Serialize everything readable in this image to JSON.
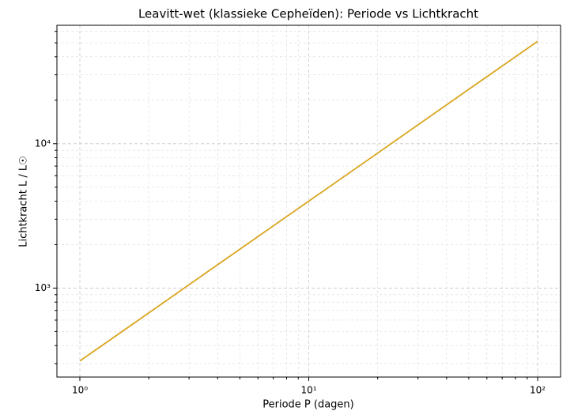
{
  "chart_data": {
    "type": "line",
    "title": "Leavitt-wet (klassieke Cepheïden): Periode vs Lichtkracht",
    "x_label": "Periode P (dagen)",
    "y_label": "Lichtkracht L / L☉",
    "x": [
      1,
      2,
      5,
      10,
      20,
      50,
      100
    ],
    "series": [
      {
        "color": "#daa520",
        "values": [
          313,
          673,
          1860,
          4000,
          8610,
          23800,
          51200
        ]
      }
    ],
    "x_log": true,
    "y_log": true,
    "grid": true,
    "xlim": [
      0.794,
      125.9
    ],
    "ylim": [
      242,
      66100
    ],
    "xticks": [
      {
        "value": 1,
        "label": "10⁰"
      },
      {
        "value": 10,
        "label": "10¹"
      },
      {
        "value": 100,
        "label": "10²"
      }
    ],
    "yticks": [
      {
        "value": 1000,
        "label": "10³"
      },
      {
        "value": 10000,
        "label": "10⁴"
      }
    ],
    "x_minor_ticks": [
      2,
      3,
      4,
      5,
      6,
      7,
      8,
      9,
      20,
      30,
      40,
      50,
      60,
      70,
      80,
      90
    ],
    "y_minor_ticks": [
      300,
      400,
      500,
      600,
      700,
      800,
      900,
      2000,
      3000,
      4000,
      5000,
      6000,
      7000,
      8000,
      9000,
      20000,
      30000,
      40000,
      50000,
      60000
    ]
  }
}
